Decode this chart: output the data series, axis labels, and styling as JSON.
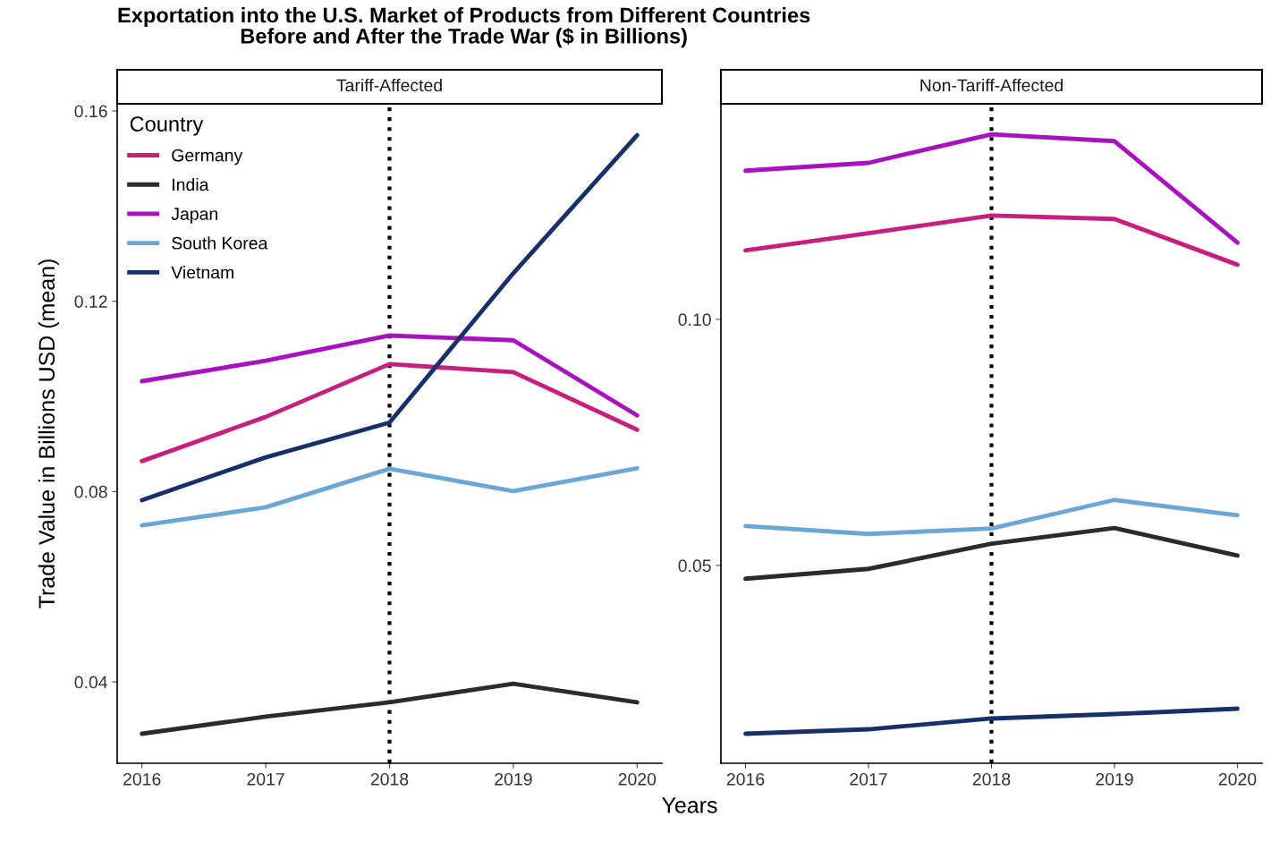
{
  "chart_data": [
    {
      "type": "line",
      "title": "Exportation into the U.S. Market of Products from Different Countries\nBefore and After the Trade War ($ in Billions)",
      "subtitle": "Tariff-Affected",
      "xlabel": "Years",
      "ylabel": "Trade Value in Billions USD (mean)",
      "legend_title": "Country",
      "legend": "top left",
      "x": [
        2016,
        2017,
        2018,
        2019,
        2020
      ],
      "xlim": [
        2015.8,
        2020.2
      ],
      "xticks": [
        2016,
        2017,
        2018,
        2019,
        2020
      ],
      "ylim": [
        0.0229,
        0.1615
      ],
      "yticks": [
        0.04,
        0.08,
        0.12,
        0.16
      ],
      "grid": false,
      "line_style": "solid",
      "ref_lines": [
        {
          "axis": "x",
          "value": 2018,
          "color": "#000000",
          "line_style": "dotted"
        }
      ],
      "series": [
        {
          "name": "Germany",
          "color": "#c81e7e",
          "values": [
            0.0864,
            0.0957,
            0.1068,
            0.1051,
            0.093
          ]
        },
        {
          "name": "India",
          "color": "#2b2b2b",
          "values": [
            0.0291,
            0.0327,
            0.0357,
            0.0396,
            0.0357
          ]
        },
        {
          "name": "Japan",
          "color": "#a810c0",
          "values": [
            0.1032,
            0.1075,
            0.1128,
            0.1118,
            0.096
          ]
        },
        {
          "name": "South Korea",
          "color": "#6aa6d6",
          "values": [
            0.0729,
            0.0767,
            0.0848,
            0.0801,
            0.0849
          ]
        },
        {
          "name": "Vietnam",
          "color": "#17306a",
          "values": [
            0.0782,
            0.0872,
            0.0945,
            0.1259,
            0.1549
          ]
        }
      ]
    },
    {
      "type": "line",
      "subtitle": "Non-Tariff-Affected",
      "x": [
        2016,
        2017,
        2018,
        2019,
        2020
      ],
      "xlim": [
        2015.8,
        2020.2
      ],
      "xticks": [
        2016,
        2017,
        2018,
        2019,
        2020
      ],
      "ylim": [
        0.0098,
        0.1438
      ],
      "yticks": [
        0.05,
        {
          "value": 0.1,
          "label": "0.10"
        }
      ],
      "grid": false,
      "line_style": "solid",
      "ref_lines": [
        {
          "axis": "x",
          "value": 2018,
          "color": "#000000",
          "line_style": "dotted"
        }
      ],
      "series": [
        {
          "color": "#c81e7e",
          "values": [
            0.114,
            0.1175,
            0.1211,
            0.1204,
            0.1111
          ]
        },
        {
          "color": "#2b2b2b",
          "values": [
            0.0473,
            0.0493,
            0.0544,
            0.0576,
            0.052
          ]
        },
        {
          "color": "#a810c0",
          "values": [
            0.1302,
            0.1318,
            0.1376,
            0.1362,
            0.1156
          ]
        },
        {
          "color": "#6aa6d6",
          "values": [
            0.058,
            0.0564,
            0.0575,
            0.0633,
            0.0602
          ]
        },
        {
          "color": "#17306a",
          "values": [
            0.0158,
            0.0167,
            0.0189,
            0.0198,
            0.0209
          ]
        }
      ]
    }
  ]
}
